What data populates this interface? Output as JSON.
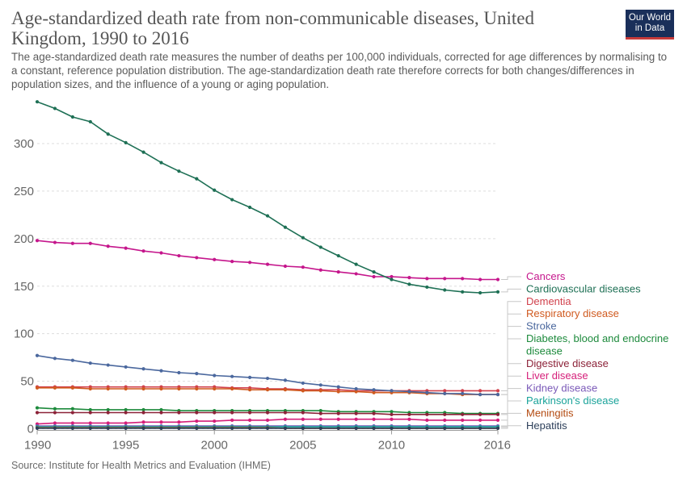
{
  "header": {
    "title": "Age-standardized death rate from non-communicable diseases, United Kingdom, 1990 to 2016",
    "subtitle": "The age-standardized death rate measures the number of deaths per 100,000 individuals, corrected for age differences by normalising to a constant, reference population distribution. The age-standardization death rate therefore corrects for both changes/differences in population sizes, and the influence of a young or aging population.",
    "logo_line1": "Our World",
    "logo_line2": "in Data"
  },
  "footer": {
    "source": "Source: Institute for Health Metrics and Evaluation (IHME)"
  },
  "colors": {
    "brand_bg": "#1a2f5a",
    "brand_accent": "#c83a3a",
    "grid": "#dddddd"
  },
  "chart_data": {
    "type": "line",
    "title": "Age-standardized death rate from non-communicable diseases, United Kingdom, 1990 to 2016",
    "xlabel": "",
    "ylabel": "",
    "xlim": [
      1990,
      2016
    ],
    "ylim": [
      0,
      345
    ],
    "x_ticks": [
      "1990",
      "1995",
      "2000",
      "2005",
      "2010",
      "2016"
    ],
    "y_ticks": [
      "0",
      "50",
      "100",
      "150",
      "200",
      "250",
      "300"
    ],
    "grid": "horizontal dotted",
    "legend": "right, end-of-line labels",
    "x": [
      1990,
      1991,
      1992,
      1993,
      1994,
      1995,
      1996,
      1997,
      1998,
      1999,
      2000,
      2001,
      2002,
      2003,
      2004,
      2005,
      2006,
      2007,
      2008,
      2009,
      2010,
      2011,
      2012,
      2013,
      2014,
      2015,
      2016
    ],
    "series": [
      {
        "name": "Cancers",
        "color": "#c5168c",
        "values": [
          198,
          196,
          195,
          195,
          192,
          190,
          187,
          185,
          182,
          180,
          178,
          176,
          175,
          173,
          171,
          170,
          167,
          165,
          163,
          160,
          160,
          159,
          158,
          158,
          158,
          157,
          157
        ]
      },
      {
        "name": "Cardiovascular diseases",
        "color": "#1e7055",
        "values": [
          344,
          337,
          328,
          323,
          310,
          301,
          291,
          280,
          271,
          263,
          251,
          241,
          233,
          224,
          212,
          201,
          191,
          182,
          173,
          165,
          157,
          152,
          149,
          146,
          144,
          143,
          144
        ]
      },
      {
        "name": "Dementia",
        "color": "#d1414c",
        "values": [
          44,
          44,
          44,
          44,
          44,
          44,
          44,
          44,
          44,
          44,
          44,
          43,
          43,
          42,
          42,
          41,
          41,
          41,
          40,
          40,
          40,
          40,
          40,
          40,
          40,
          40,
          40
        ]
      },
      {
        "name": "Respiratory disease",
        "color": "#d05a1f",
        "values": [
          43,
          43,
          43,
          42,
          42,
          42,
          42,
          42,
          42,
          42,
          42,
          42,
          41,
          41,
          41,
          40,
          40,
          39,
          39,
          38,
          38,
          38,
          37,
          37,
          36,
          36,
          36
        ]
      },
      {
        "name": "Stroke",
        "color": "#4b689e",
        "values": [
          77,
          74,
          72,
          69,
          67,
          65,
          63,
          61,
          59,
          58,
          56,
          55,
          54,
          53,
          51,
          48,
          46,
          44,
          42,
          41,
          40,
          39,
          38,
          37,
          37,
          36,
          36
        ]
      },
      {
        "name": "Diabetes, blood and endocrine disease",
        "color": "#1d8a3c",
        "values": [
          22,
          21,
          21,
          20,
          20,
          20,
          20,
          20,
          19,
          19,
          19,
          19,
          19,
          19,
          19,
          19,
          19,
          18,
          18,
          18,
          18,
          17,
          17,
          17,
          16,
          16,
          16
        ]
      },
      {
        "name": "Digestive disease",
        "color": "#8c2238",
        "values": [
          17,
          17,
          17,
          17,
          17,
          17,
          17,
          17,
          17,
          17,
          17,
          17,
          17,
          17,
          17,
          17,
          16,
          16,
          16,
          16,
          15,
          15,
          15,
          15,
          15,
          15,
          15
        ]
      },
      {
        "name": "Liver disease",
        "color": "#d51e79",
        "values": [
          5,
          6,
          6,
          6,
          6,
          6,
          7,
          7,
          7,
          8,
          8,
          9,
          9,
          9,
          10,
          10,
          10,
          10,
          10,
          10,
          10,
          10,
          9,
          9,
          9,
          9,
          9
        ]
      },
      {
        "name": "Kidney disease",
        "color": "#7a59b8",
        "values": [
          3,
          3,
          3,
          3,
          3,
          3,
          3,
          3,
          3,
          3,
          3,
          3,
          3,
          3,
          3,
          3,
          3,
          3,
          3,
          3,
          3,
          3,
          3,
          3,
          3,
          3,
          3
        ]
      },
      {
        "name": "Parkinson's disease",
        "color": "#1aa39a",
        "values": [
          2,
          2,
          2,
          2,
          2,
          2,
          2,
          2,
          2,
          2,
          2,
          2,
          2,
          2,
          2,
          2,
          2,
          2,
          2,
          2,
          2,
          2,
          2,
          2,
          2,
          2,
          2
        ]
      },
      {
        "name": "Meningitis",
        "color": "#b34a10",
        "values": [
          1,
          1,
          1,
          1,
          1,
          1,
          1,
          1,
          1,
          1,
          1,
          1,
          1,
          1,
          0.5,
          0.5,
          0.5,
          0.5,
          0.5,
          0.5,
          0.5,
          0.5,
          0.5,
          0.5,
          0.5,
          0.5,
          0.5
        ]
      },
      {
        "name": "Hepatitis",
        "color": "#2b3e59",
        "values": [
          0.5,
          0.5,
          0.5,
          0.5,
          0.5,
          0.5,
          0.5,
          0.5,
          0.5,
          0.5,
          0.5,
          0.5,
          0.5,
          0.5,
          0.5,
          0.5,
          0.5,
          0.5,
          0.5,
          0.5,
          0.5,
          0.5,
          0.5,
          0.5,
          0.5,
          0.5,
          0.5
        ]
      }
    ]
  }
}
